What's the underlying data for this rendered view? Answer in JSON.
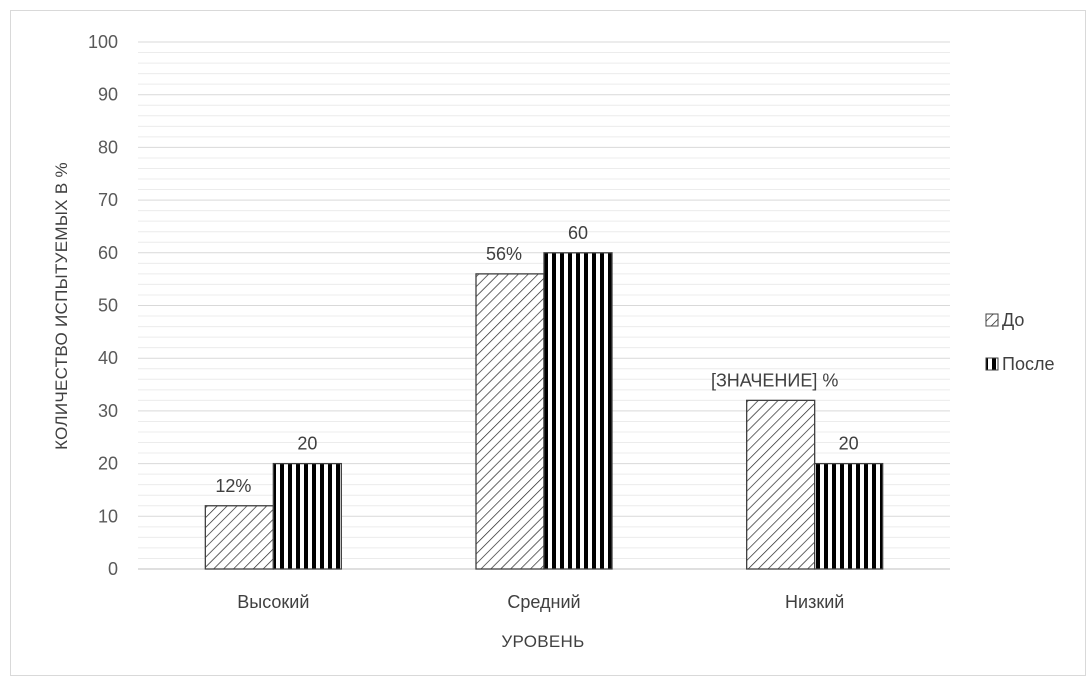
{
  "chart_data": {
    "type": "bar",
    "title": "",
    "xlabel": "УРОВЕНЬ",
    "ylabel": "КОЛИЧЕСТВО ИСПЫТУЕМЫХ В %",
    "ylim": [
      0,
      100
    ],
    "yticks": [
      0,
      10,
      20,
      30,
      40,
      50,
      60,
      70,
      80,
      90,
      100
    ],
    "categories": [
      "Высокий",
      "Средний",
      "Низкий"
    ],
    "series": [
      {
        "name": "До",
        "values": [
          12,
          56,
          32
        ],
        "labels": [
          "12%",
          "56%",
          "[ЗНАЧЕНИЕ] %"
        ],
        "pattern": "diagonal-hatch"
      },
      {
        "name": "После",
        "values": [
          20,
          60,
          20
        ],
        "labels": [
          "20",
          "60",
          "20"
        ],
        "pattern": "vertical-stripes"
      }
    ],
    "grid": true,
    "legend": "right"
  },
  "colors": {
    "grid": "#d9d9d9",
    "bar_outline": "#404040",
    "pattern": "#262626",
    "text": "#404040"
  }
}
